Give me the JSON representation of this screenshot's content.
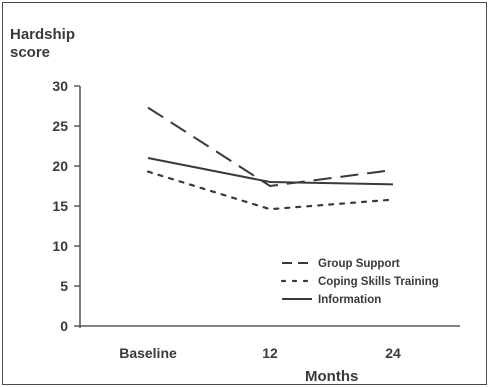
{
  "chart_data": {
    "type": "line",
    "ylabel_line1": "Hardship",
    "ylabel_line2": "score",
    "xlabel": "Months",
    "categories": [
      "Baseline",
      "12",
      "24"
    ],
    "ylim": [
      0,
      30
    ],
    "yticks": [
      0,
      5,
      10,
      15,
      20,
      25,
      30
    ],
    "grid": false,
    "legend_position": "bottom-right",
    "series": [
      {
        "name": "Group Support",
        "values": [
          27.3,
          17.5,
          19.5
        ],
        "style": "long-dash",
        "color": "#3a3a3a"
      },
      {
        "name": "Coping Skills Training",
        "values": [
          19.3,
          14.6,
          15.8
        ],
        "style": "dotted",
        "color": "#3a3a3a"
      },
      {
        "name": "Information",
        "values": [
          21.0,
          18.0,
          17.7
        ],
        "style": "solid",
        "color": "#3a3a3a"
      }
    ]
  }
}
